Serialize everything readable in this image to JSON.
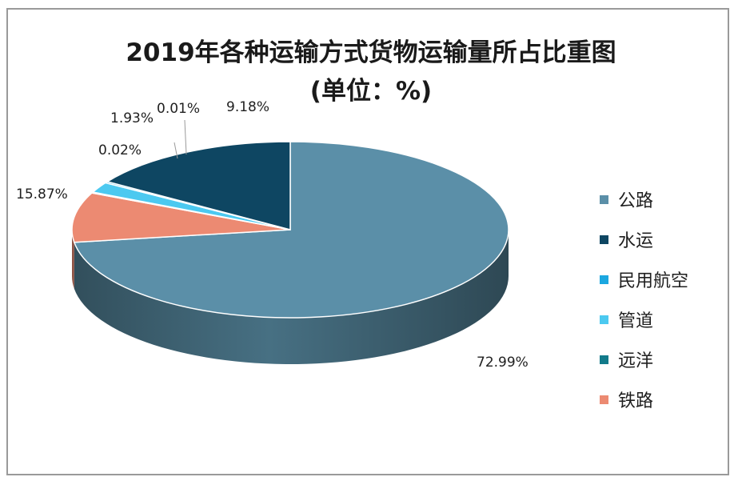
{
  "chart_data": {
    "type": "pie",
    "title": "2019年各种运输方式货物运输量所占比重图",
    "subtitle": "(单位：%)",
    "legend_position": "right",
    "slices": [
      {
        "name": "公路",
        "value": 72.99,
        "label": "72.99%",
        "color": "#5b8fa8"
      },
      {
        "name": "水运",
        "value": 15.87,
        "label": "15.87%",
        "color": "#0e4662"
      },
      {
        "name": "民用航空",
        "value": 0.02,
        "label": "0.02%",
        "color": "#1ba7e0"
      },
      {
        "name": "管道",
        "value": 1.93,
        "label": "1.93%",
        "color": "#4cc9f0"
      },
      {
        "name": "远洋",
        "value": 0.01,
        "label": "0.01%",
        "color": "#127a8a"
      },
      {
        "name": "铁路",
        "value": 9.18,
        "label": "9.18%",
        "color": "#ec8a72"
      }
    ]
  }
}
